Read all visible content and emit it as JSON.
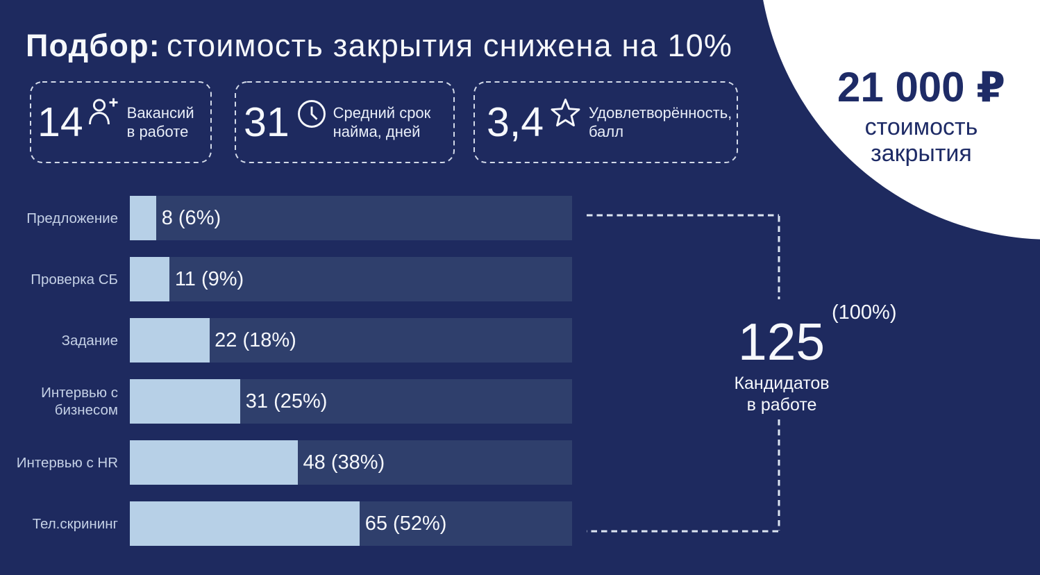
{
  "title": {
    "bold": "Подбор:",
    "rest": "стоимость закрытия снижена на 10%"
  },
  "kpis": [
    {
      "value": "14",
      "icon": "person-plus-icon",
      "line1": "Вакансий",
      "line2": "в работе"
    },
    {
      "value": "31",
      "icon": "clock-icon",
      "line1": "Средний срок",
      "line2": "найма, дней"
    },
    {
      "value": "3,4",
      "icon": "star-icon",
      "line1": "Удовлетворённость,",
      "line2": "балл"
    }
  ],
  "cost_badge": {
    "amount": "21 000 ₽",
    "line1": "стоимость",
    "line2": "закрытия"
  },
  "chart_data": {
    "type": "bar",
    "orientation": "horizontal",
    "categories": [
      "Предложение",
      "Проверка СБ",
      "Задание",
      "Интервью с бизнесом",
      "Интервью с HR",
      "Тел.скрининг"
    ],
    "values": [
      8,
      11,
      22,
      31,
      48,
      65
    ],
    "percents": [
      6,
      9,
      18,
      25,
      38,
      52
    ],
    "value_labels": [
      "8 (6%)",
      "11 (9%)",
      "22 (18%)",
      "31 (25%)",
      "48 (38%)",
      "65 (52%)"
    ],
    "xlim_percent": [
      0,
      100
    ],
    "grid": false,
    "total": {
      "value": "125",
      "percent": "(100%)",
      "line1": "Кандидатов",
      "line2": "в работе"
    }
  },
  "colors": {
    "background": "#1e2a5f",
    "bar_track": "#2f3f6c",
    "bar_fill": "#b7d0e7",
    "text_primary": "#f6f8fc",
    "text_secondary": "#c5d1e6",
    "circle": "#ffffff",
    "navy_text": "#1e2b66",
    "dash": "#dde5f2"
  }
}
